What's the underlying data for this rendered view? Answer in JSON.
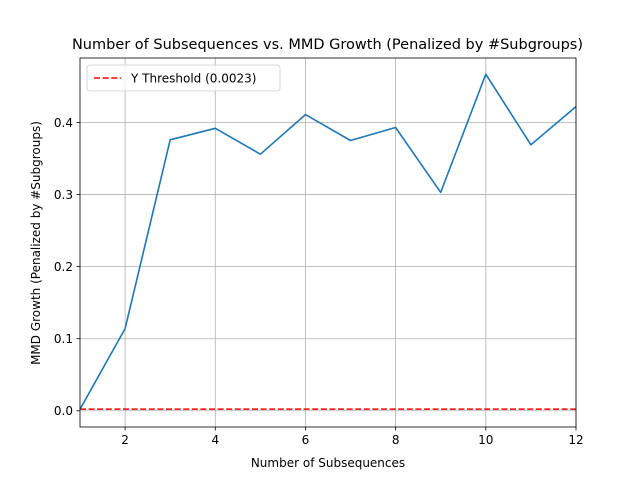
{
  "chart_data": {
    "type": "line",
    "title": "Number of Subsequences vs. MMD Growth (Penalized by #Subgroups)",
    "xlabel": "Number of Subsequences",
    "ylabel": "MMD Growth (Penalized by #Subgroups)",
    "xlim": [
      1,
      12
    ],
    "ylim": [
      -0.0225,
      0.4895
    ],
    "xticks": [
      2,
      4,
      6,
      8,
      10,
      12
    ],
    "yticks": [
      0.0,
      0.1,
      0.2,
      0.3,
      0.4
    ],
    "ytick_labels": [
      "0.0",
      "0.1",
      "0.2",
      "0.3",
      "0.4"
    ],
    "grid": true,
    "legend_position": "top-left",
    "series": [
      {
        "x": [
          1,
          2,
          3,
          4,
          5,
          6,
          7,
          8,
          9,
          10,
          11,
          12
        ],
        "y": [
          0.002,
          0.114,
          0.376,
          0.392,
          0.356,
          0.411,
          0.375,
          0.393,
          0.303,
          0.467,
          0.369,
          0.422
        ],
        "color": "#1f77b4"
      }
    ],
    "reference_lines": [
      {
        "name": "Y Threshold (0.0023)",
        "y": 0.0023,
        "color": "#ff0000",
        "style": "dashed"
      }
    ]
  }
}
